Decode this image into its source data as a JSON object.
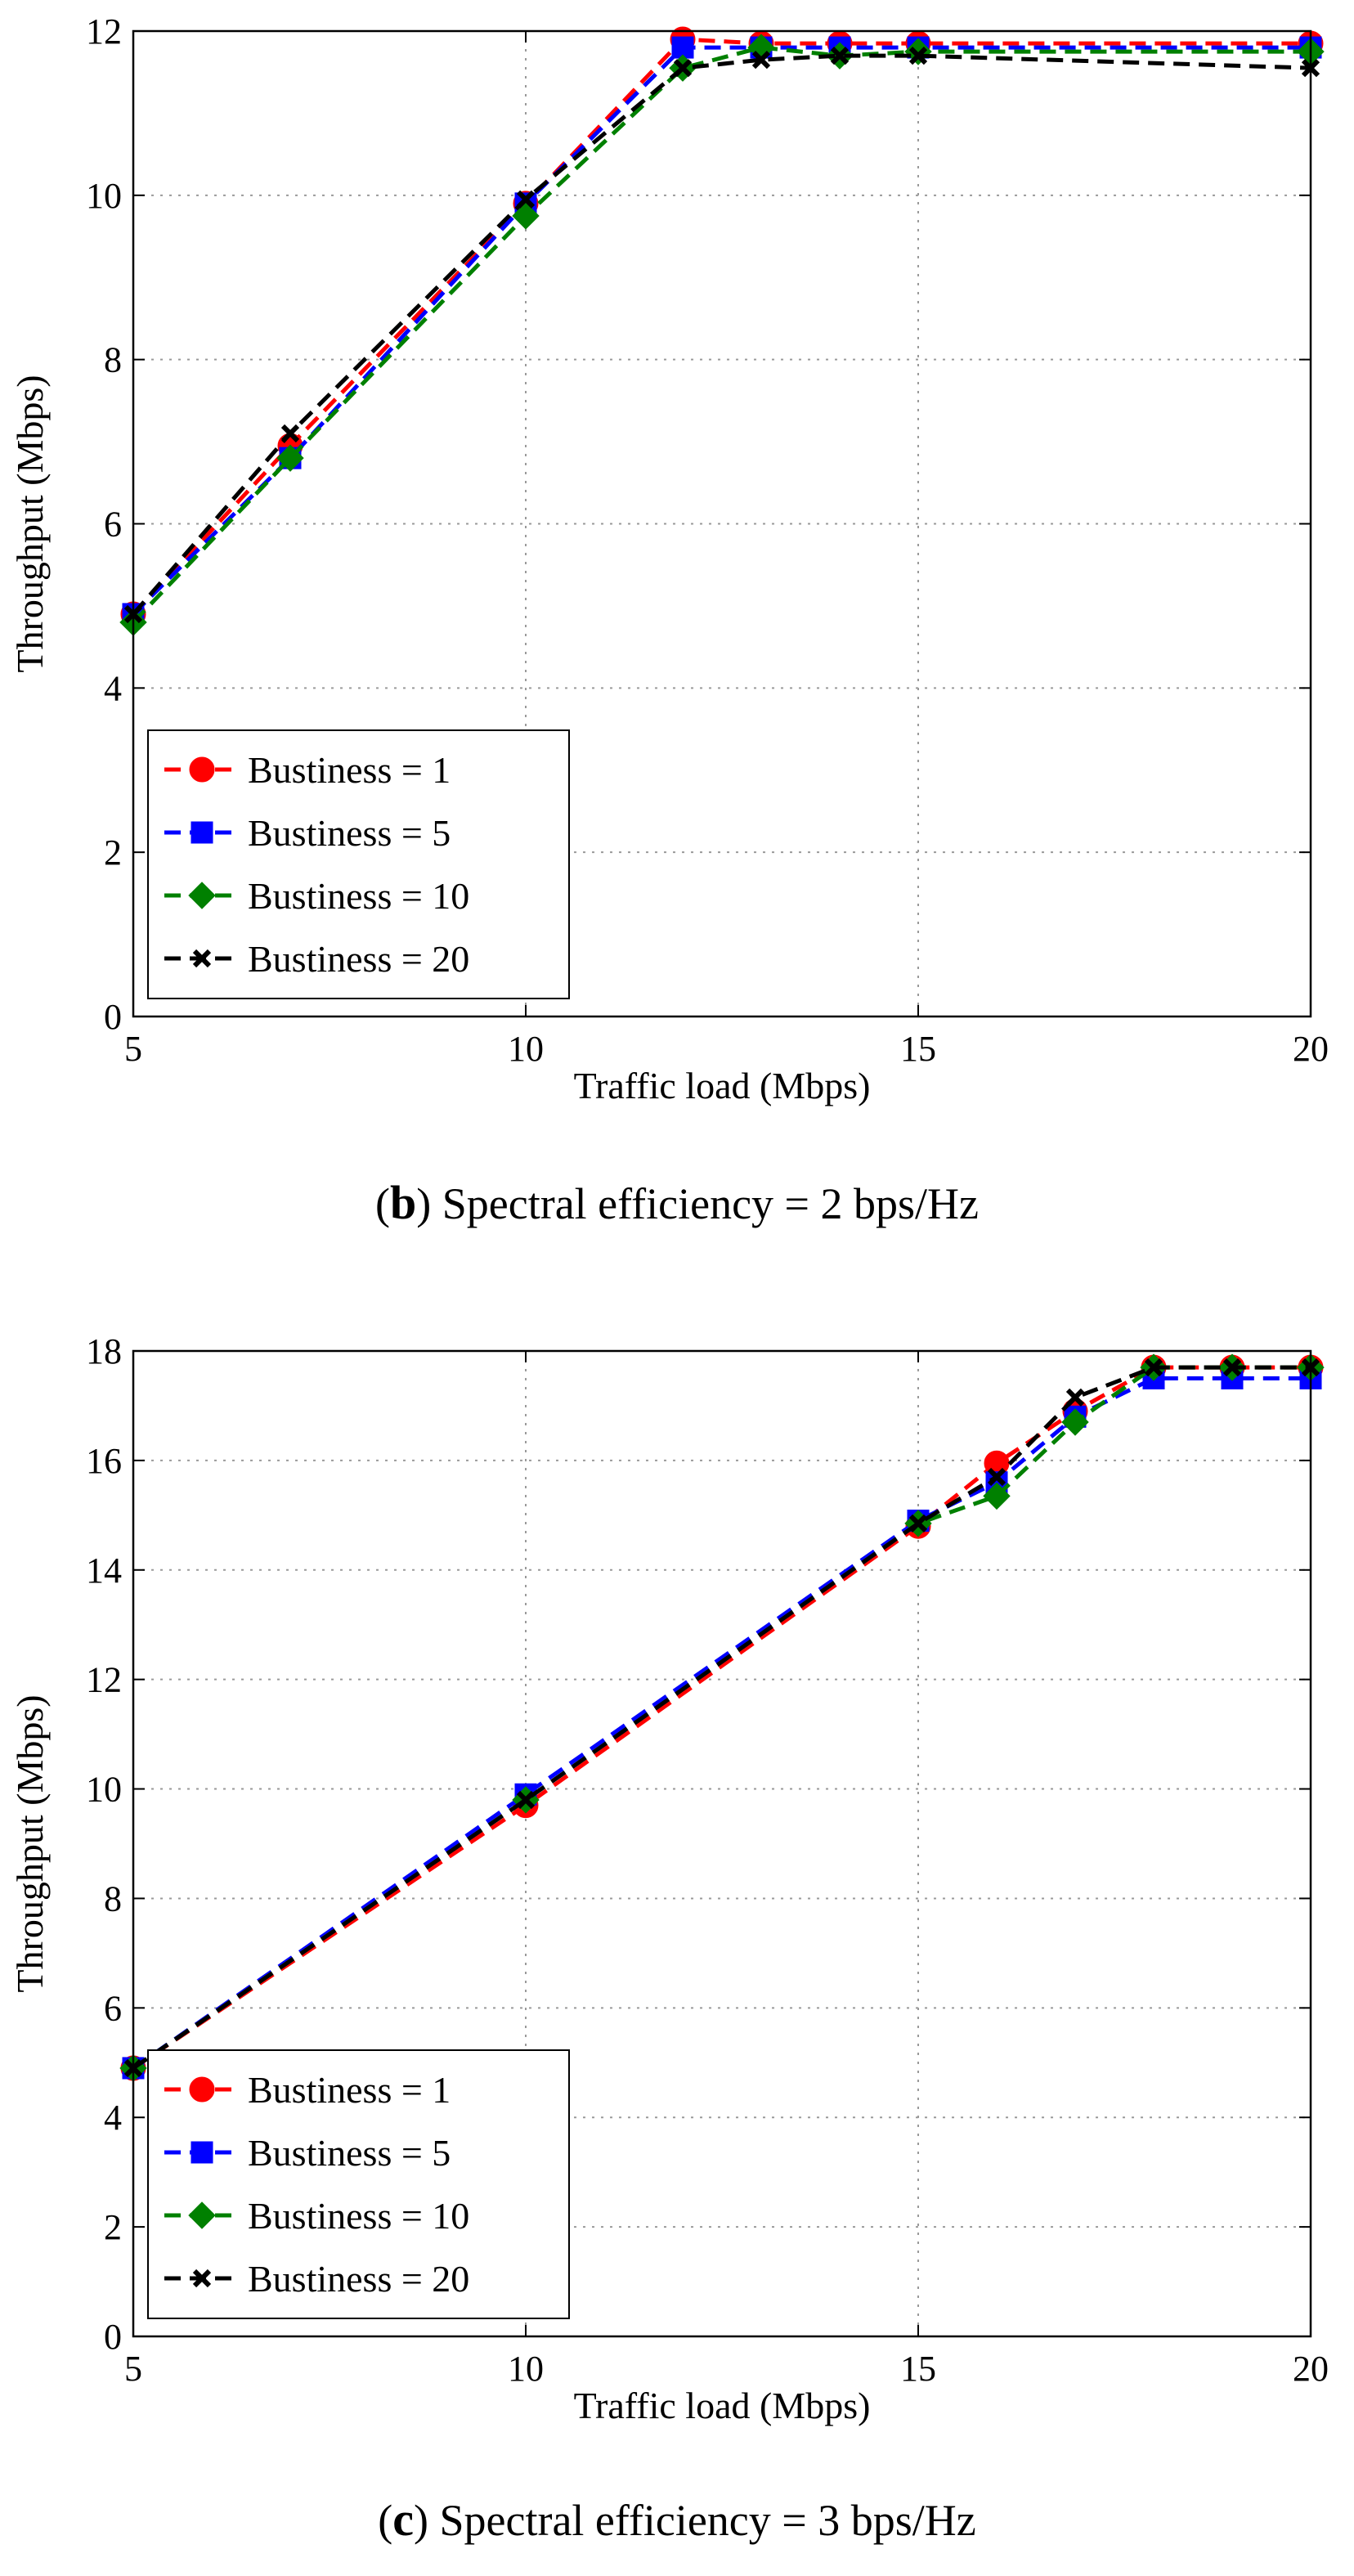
{
  "chart_data": [
    {
      "type": "line",
      "caption_letter": "b",
      "caption_text": "Spectral efficiency = 2 bps/Hz",
      "xlabel": "Traffic load (Mbps)",
      "ylabel": "Throughput (Mbps)",
      "xlim": [
        5,
        20
      ],
      "ylim": [
        0,
        12
      ],
      "xticks": [
        5,
        10,
        15,
        20
      ],
      "yticks": [
        0,
        2,
        4,
        6,
        8,
        10,
        12
      ],
      "grid": true,
      "legend_position": "bottom-left",
      "x": [
        5,
        7,
        10,
        12,
        13,
        14,
        15,
        20
      ],
      "series": [
        {
          "name": "Bustiness = 1",
          "color": "#ff0000",
          "marker": "circle",
          "values": [
            4.9,
            6.95,
            9.9,
            11.9,
            11.85,
            11.85,
            11.85,
            11.85
          ]
        },
        {
          "name": "Bustiness = 5",
          "color": "#0000ff",
          "marker": "square",
          "values": [
            4.9,
            6.8,
            9.9,
            11.8,
            11.8,
            11.8,
            11.8,
            11.8
          ]
        },
        {
          "name": "Bustiness = 10",
          "color": "#008000",
          "marker": "diamond",
          "values": [
            4.8,
            6.8,
            9.75,
            11.55,
            11.8,
            11.7,
            11.75,
            11.75
          ]
        },
        {
          "name": "Bustiness = 20",
          "color": "#000000",
          "marker": "x",
          "values": [
            4.9,
            7.1,
            9.95,
            11.55,
            11.65,
            11.7,
            11.7,
            11.55
          ]
        }
      ]
    },
    {
      "type": "line",
      "caption_letter": "c",
      "caption_text": "Spectral efficiency = 3 bps/Hz",
      "xlabel": "Traffic load (Mbps)",
      "ylabel": "Throughput (Mbps)",
      "xlim": [
        5,
        20
      ],
      "ylim": [
        0,
        18
      ],
      "xticks": [
        5,
        10,
        15,
        20
      ],
      "yticks": [
        0,
        2,
        4,
        6,
        8,
        10,
        12,
        14,
        16,
        18
      ],
      "grid": true,
      "legend_position": "bottom-left",
      "x": [
        5,
        10,
        15,
        16,
        17,
        18,
        19,
        20
      ],
      "series": [
        {
          "name": "Bustiness = 1",
          "color": "#ff0000",
          "marker": "circle",
          "values": [
            4.9,
            9.7,
            14.8,
            15.95,
            16.9,
            17.7,
            17.7,
            17.7
          ]
        },
        {
          "name": "Bustiness = 5",
          "color": "#0000ff",
          "marker": "square",
          "values": [
            4.9,
            9.9,
            14.9,
            15.6,
            16.8,
            17.5,
            17.5,
            17.5
          ]
        },
        {
          "name": "Bustiness = 10",
          "color": "#008000",
          "marker": "diamond",
          "values": [
            4.9,
            9.8,
            14.85,
            15.35,
            16.7,
            17.7,
            17.7,
            17.7
          ]
        },
        {
          "name": "Bustiness = 20",
          "color": "#000000",
          "marker": "x",
          "values": [
            4.9,
            9.8,
            14.85,
            15.7,
            17.15,
            17.7,
            17.7,
            17.7
          ]
        }
      ]
    }
  ]
}
